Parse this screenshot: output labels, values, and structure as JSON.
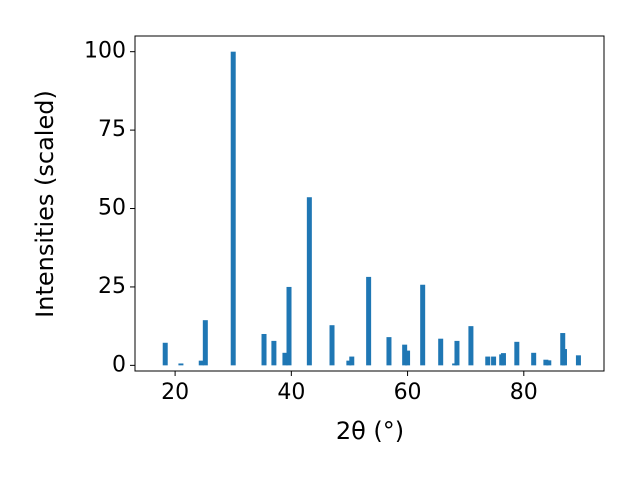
{
  "chart_data": {
    "type": "bar",
    "xlabel": "2θ (°)",
    "ylabel": "Intensities (scaled)",
    "x": [
      18.3,
      21.0,
      24.5,
      25.2,
      30.0,
      35.3,
      37.0,
      38.9,
      39.6,
      43.1,
      47.0,
      49.9,
      50.4,
      53.3,
      56.8,
      59.5,
      60.0,
      62.6,
      65.7,
      68.1,
      68.5,
      70.9,
      73.8,
      74.8,
      76.2,
      76.5,
      78.8,
      81.7,
      83.8,
      84.3,
      86.7,
      87.0,
      89.4
    ],
    "values": [
      7.2,
      0.6,
      1.5,
      14.4,
      100,
      10,
      7.8,
      4,
      25,
      53.6,
      12.8,
      1.5,
      2.8,
      28.2,
      9,
      6.6,
      4.7,
      25.7,
      8.5,
      0.6,
      7.8,
      12.5,
      2.8,
      2.8,
      3.5,
      3.9,
      7.5,
      4,
      1.8,
      1.6,
      10.3,
      5.2,
      3.2
    ],
    "color": "#1f77b4",
    "xlim": [
      13.1,
      93.8
    ],
    "xticks": [
      20,
      40,
      60,
      80
    ],
    "ylim": [
      -1.8,
      105
    ],
    "yticks": [
      0,
      25,
      50,
      75,
      100
    ]
  }
}
